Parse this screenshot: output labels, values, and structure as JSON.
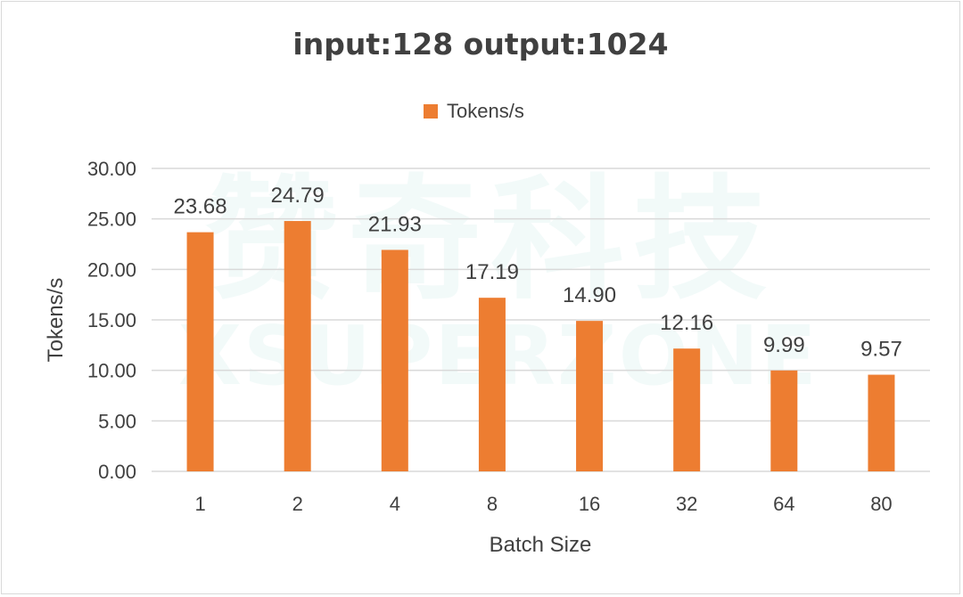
{
  "watermark": {
    "logo_text": "赞奇科技",
    "brand_text": "XSUPERZONE"
  },
  "chart_data": {
    "type": "bar",
    "title": "input:128 output:1024",
    "xlabel": "Batch Size",
    "ylabel": "Tokens/s",
    "categories": [
      "1",
      "2",
      "4",
      "8",
      "16",
      "32",
      "64",
      "80"
    ],
    "series": [
      {
        "name": "Tokens/s",
        "values": [
          23.68,
          24.79,
          21.93,
          17.19,
          14.9,
          12.16,
          9.99,
          9.57
        ],
        "data_labels": [
          "23.68",
          "24.79",
          "21.93",
          "17.19",
          "14.90",
          "12.16",
          "9.99",
          "9.57"
        ],
        "color": "#ED7D31"
      }
    ],
    "ylim": [
      0,
      30
    ],
    "yticks": [
      "0.00",
      "5.00",
      "10.00",
      "15.00",
      "20.00",
      "25.00",
      "30.00"
    ],
    "ytick_values": [
      0,
      5,
      10,
      15,
      20,
      25,
      30
    ],
    "grid": true,
    "legend_position": "top-center",
    "gridline_color": "#d9d9d9"
  }
}
